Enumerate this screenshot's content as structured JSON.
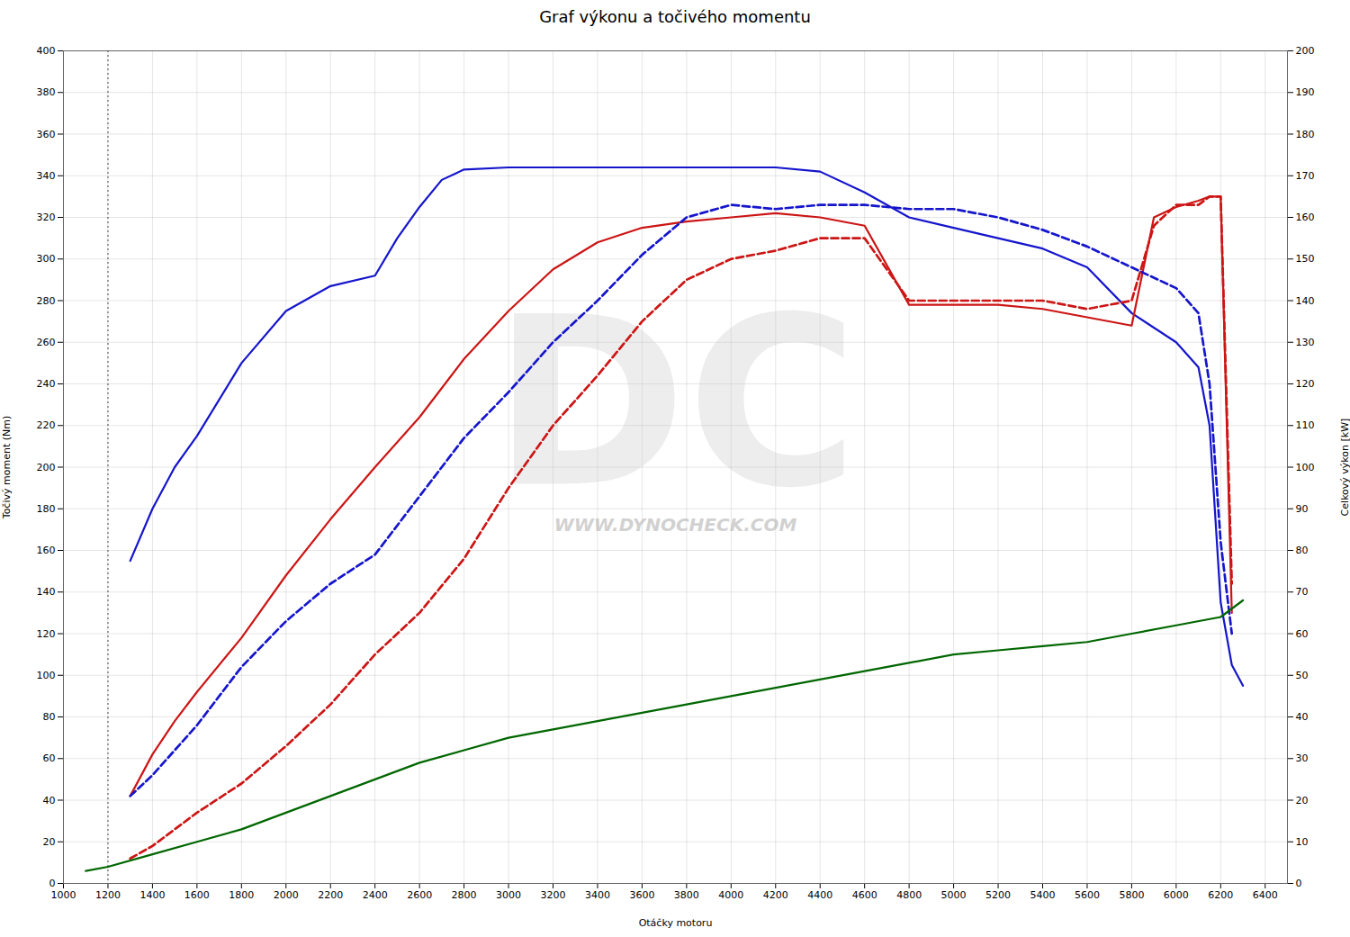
{
  "chart_data": {
    "type": "line",
    "title": "Graf výkonu a točivého momentu",
    "xlabel": "Otáčky motoru",
    "ylabel": "Točivý moment (Nm)",
    "y2label": "Celkový výkon [kW]",
    "xlim": [
      1000,
      6500
    ],
    "ylim": [
      0,
      400
    ],
    "y2lim": [
      0,
      200
    ],
    "xticks": [
      1000,
      1200,
      1400,
      1600,
      1800,
      2000,
      2200,
      2400,
      2600,
      2800,
      3000,
      3200,
      3400,
      3600,
      3800,
      4000,
      4200,
      4400,
      4600,
      4800,
      5000,
      5200,
      5400,
      5600,
      5800,
      6000,
      6200,
      6400
    ],
    "yticks": [
      0,
      20,
      40,
      60,
      80,
      100,
      120,
      140,
      160,
      180,
      200,
      220,
      240,
      260,
      280,
      300,
      320,
      340,
      360,
      380,
      400
    ],
    "y2ticks": [
      0,
      10,
      20,
      30,
      40,
      50,
      60,
      70,
      80,
      90,
      100,
      110,
      120,
      130,
      140,
      150,
      160,
      170,
      180,
      190,
      200
    ],
    "grid": true,
    "series": [
      {
        "color": "#1515cc",
        "line_style": "solid",
        "axis": "y",
        "x": [
          1300,
          1400,
          1500,
          1600,
          1800,
          2000,
          2200,
          2400,
          2500,
          2600,
          2700,
          2800,
          3000,
          3200,
          3400,
          3600,
          3800,
          4000,
          4200,
          4400,
          4600,
          4800,
          5000,
          5200,
          5400,
          5600,
          5800,
          6000,
          6100,
          6150,
          6200,
          6250,
          6300
        ],
        "values": [
          155,
          180,
          200,
          215,
          250,
          275,
          287,
          292,
          310,
          325,
          338,
          343,
          344,
          344,
          344,
          344,
          344,
          344,
          344,
          342,
          332,
          320,
          315,
          310,
          305,
          296,
          274,
          260,
          248,
          220,
          135,
          105,
          95
        ]
      },
      {
        "color": "#1515cc",
        "line_style": "dashed",
        "axis": "y2",
        "x": [
          1300,
          1400,
          1500,
          1600,
          1800,
          2000,
          2200,
          2400,
          2600,
          2800,
          3000,
          3200,
          3400,
          3600,
          3800,
          4000,
          4200,
          4400,
          4600,
          4800,
          5000,
          5200,
          5400,
          5600,
          5800,
          6000,
          6100,
          6150,
          6200,
          6250
        ],
        "values": [
          21,
          26,
          32,
          38,
          52,
          63,
          72,
          79,
          93,
          107,
          118,
          130,
          140,
          151,
          160,
          163,
          162,
          163,
          163,
          162,
          162,
          160,
          157,
          153,
          148,
          143,
          137,
          120,
          82,
          60
        ]
      },
      {
        "color": "#cc1515",
        "line_style": "solid",
        "axis": "y",
        "x": [
          1300,
          1400,
          1500,
          1600,
          1800,
          2000,
          2200,
          2400,
          2600,
          2800,
          3000,
          3200,
          3400,
          3600,
          3800,
          4000,
          4200,
          4400,
          4600,
          4800,
          5000,
          5200,
          5400,
          5600,
          5800,
          5900,
          6000,
          6100,
          6150,
          6200,
          6250
        ],
        "values": [
          42,
          62,
          78,
          92,
          118,
          148,
          175,
          200,
          224,
          252,
          275,
          295,
          308,
          315,
          318,
          320,
          322,
          320,
          316,
          278,
          278,
          278,
          276,
          272,
          268,
          320,
          325,
          328,
          330,
          330,
          130
        ]
      },
      {
        "color": "#cc1515",
        "line_style": "dashed",
        "axis": "y2",
        "x": [
          1300,
          1400,
          1500,
          1600,
          1800,
          2000,
          2200,
          2400,
          2600,
          2800,
          3000,
          3200,
          3400,
          3600,
          3800,
          4000,
          4200,
          4400,
          4600,
          4800,
          5000,
          5200,
          5400,
          5600,
          5800,
          5900,
          6000,
          6100,
          6150,
          6200,
          6250
        ],
        "values": [
          6,
          9,
          13,
          17,
          24,
          33,
          43,
          55,
          65,
          78,
          95,
          110,
          122,
          135,
          145,
          150,
          152,
          155,
          155,
          140,
          140,
          140,
          140,
          138,
          140,
          158,
          163,
          163,
          165,
          165,
          72
        ]
      },
      {
        "color": "#006600",
        "line_style": "solid",
        "axis": "y2",
        "x": [
          1100,
          1200,
          1400,
          1600,
          1800,
          2000,
          2200,
          2400,
          2600,
          2800,
          3000,
          3200,
          3400,
          3600,
          3800,
          4000,
          4200,
          4400,
          4600,
          4800,
          5000,
          5200,
          5400,
          5600,
          5800,
          6000,
          6200,
          6300
        ],
        "values": [
          3,
          4,
          7,
          10,
          13,
          17,
          21,
          25,
          29,
          32,
          35,
          37,
          39,
          41,
          43,
          45,
          47,
          49,
          51,
          53,
          55,
          56,
          57,
          58,
          60,
          62,
          64,
          68
        ]
      }
    ],
    "annotations": [
      {
        "type": "vline",
        "x": 1200,
        "color": "#333333",
        "line_style": "dotted"
      },
      {
        "text": "WWW.DYNOCHECK.COM",
        "color": "#aaaaaa"
      },
      {
        "text": "DC",
        "color": "#cccccc"
      }
    ]
  }
}
